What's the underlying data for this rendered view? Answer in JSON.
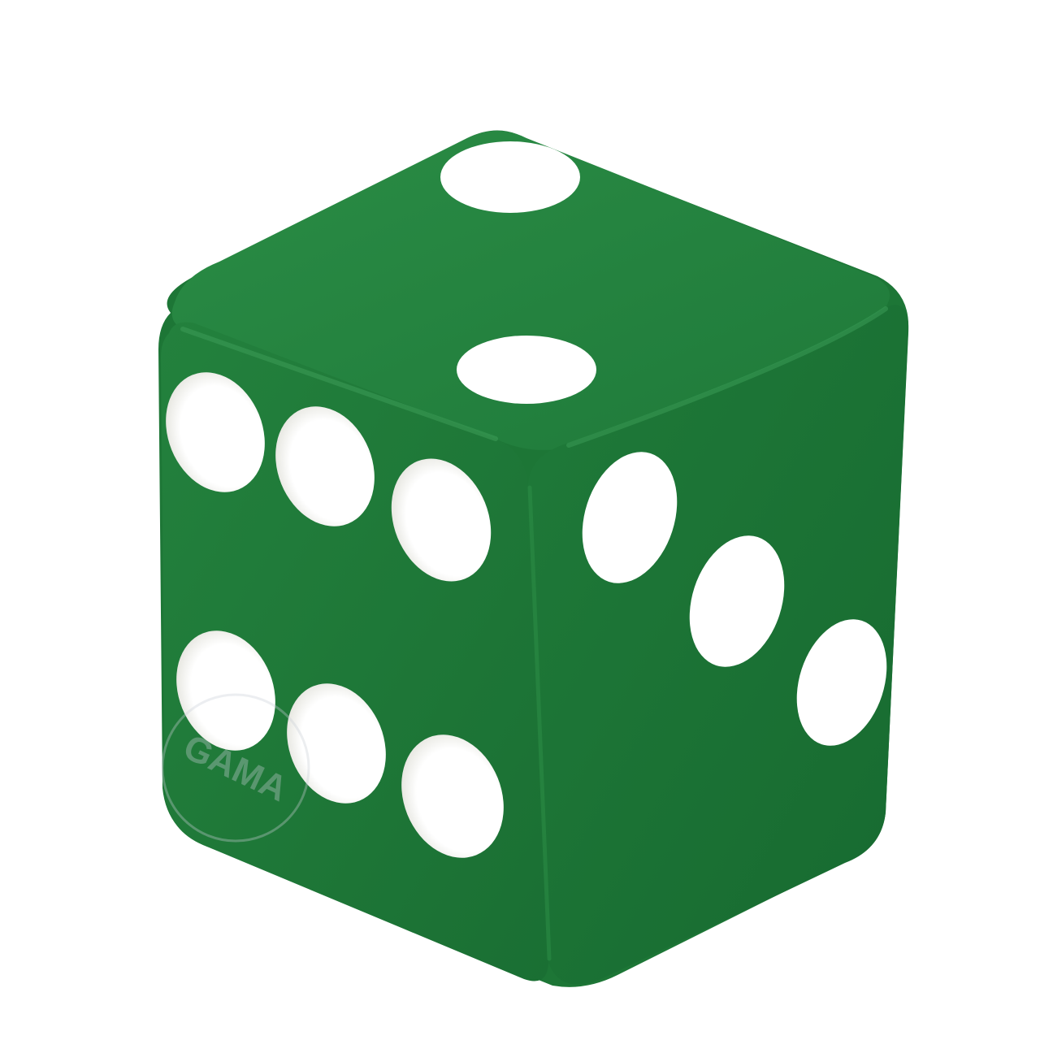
{
  "scene": {
    "subject": "die",
    "colors": {
      "background": "#ffffff",
      "die_base": "#1f7a3a",
      "die_top": "#24833f",
      "die_left": "#1d7636",
      "die_right": "#1a6f33",
      "edge_highlight": "#3a9a55",
      "edge_shadow": "#125c27",
      "pip": "#ffffff",
      "pip_shadow": "#d9d9d2",
      "watermark": "#c9cfd6"
    },
    "faces": {
      "top": {
        "pips": 2
      },
      "left": {
        "pips": 6
      },
      "right": {
        "pips": 3
      }
    },
    "watermark": {
      "text": "GAMA"
    }
  }
}
